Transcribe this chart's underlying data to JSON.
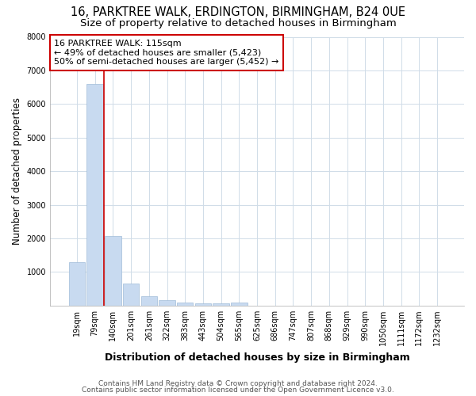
{
  "title": "16, PARKTREE WALK, ERDINGTON, BIRMINGHAM, B24 0UE",
  "subtitle": "Size of property relative to detached houses in Birmingham",
  "xlabel": "Distribution of detached houses by size in Birmingham",
  "ylabel": "Number of detached properties",
  "categories": [
    "19sqm",
    "79sqm",
    "140sqm",
    "201sqm",
    "261sqm",
    "322sqm",
    "383sqm",
    "443sqm",
    "504sqm",
    "565sqm",
    "625sqm",
    "686sqm",
    "747sqm",
    "807sqm",
    "868sqm",
    "929sqm",
    "990sqm",
    "1050sqm",
    "1111sqm",
    "1172sqm",
    "1232sqm"
  ],
  "values": [
    1300,
    6600,
    2080,
    650,
    290,
    150,
    100,
    60,
    55,
    90,
    0,
    0,
    0,
    0,
    0,
    0,
    0,
    0,
    0,
    0,
    0
  ],
  "bar_color": "#c8daf0",
  "bar_edge_color": "#a0bcd8",
  "vline_color": "#cc0000",
  "vline_pos": 1.5,
  "annotation_text": "16 PARKTREE WALK: 115sqm\n← 49% of detached houses are smaller (5,423)\n50% of semi-detached houses are larger (5,452) →",
  "annotation_box_facecolor": "#ffffff",
  "annotation_box_edgecolor": "#cc0000",
  "ylim": [
    0,
    8000
  ],
  "yticks": [
    0,
    1000,
    2000,
    3000,
    4000,
    5000,
    6000,
    7000,
    8000
  ],
  "background_color": "#ffffff",
  "grid_color": "#d0dce8",
  "footer_line1": "Contains HM Land Registry data © Crown copyright and database right 2024.",
  "footer_line2": "Contains public sector information licensed under the Open Government Licence v3.0.",
  "title_fontsize": 10.5,
  "subtitle_fontsize": 9.5,
  "xlabel_fontsize": 9,
  "ylabel_fontsize": 8.5,
  "tick_fontsize": 7,
  "annotation_fontsize": 8,
  "footer_fontsize": 6.5
}
